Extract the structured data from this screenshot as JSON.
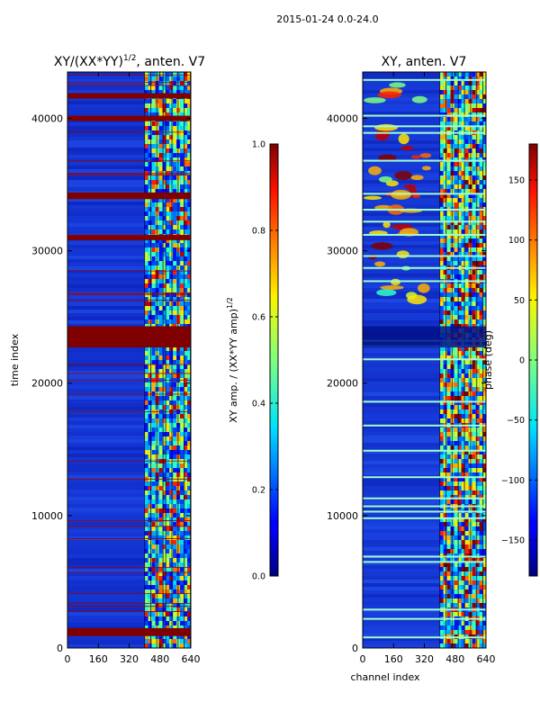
{
  "suptitle": "2015-01-24 0.0-24.0",
  "colors": {
    "saturated_band": "#800000",
    "deep_blue": "#00007f",
    "background_blue": "#1a3cdc"
  },
  "chart_data": [
    {
      "type": "heatmap",
      "title_prefix": "XY/(XX*YY)",
      "title_exp": "1/2",
      "title_suffix": ", anten. V7",
      "xlabel": "",
      "ylabel": "time index",
      "xlim": [
        0,
        640
      ],
      "ylim": [
        0,
        43500
      ],
      "xticks": [
        0,
        160,
        320,
        480,
        640
      ],
      "yticks": [
        0,
        10000,
        20000,
        30000,
        40000
      ],
      "colorbar": {
        "label_prefix": "XY amp. / (XX*YY amp)",
        "label_exp": "1/2",
        "range": [
          0.0,
          1.0
        ],
        "ticks": [
          "0.0",
          "0.2",
          "0.4",
          "0.6",
          "0.8",
          "1.0"
        ],
        "tick_values": [
          0.0,
          0.2,
          0.4,
          0.6,
          0.8,
          1.0
        ]
      },
      "active_channel_ranges": [
        [
          400,
          500
        ],
        [
          510,
          640
        ]
      ],
      "saturated_time_bands": [
        [
          900,
          1500
        ],
        [
          22700,
          24300
        ],
        [
          30800,
          31200
        ],
        [
          33900,
          34400
        ],
        [
          39800,
          40200
        ],
        [
          41500,
          41900
        ]
      ]
    },
    {
      "type": "heatmap",
      "title": "XY, anten. V7",
      "xlabel": "channel index",
      "ylabel": "",
      "xlim": [
        0,
        640
      ],
      "ylim": [
        0,
        43500
      ],
      "xticks": [
        0,
        160,
        320,
        480,
        640
      ],
      "yticks": [
        0,
        10000,
        20000,
        30000,
        40000
      ],
      "colorbar": {
        "label": "phase (deg)",
        "range": [
          -180,
          180
        ],
        "ticks": [
          "150",
          "100",
          "50",
          "0",
          "−50",
          "−100",
          "−150"
        ],
        "tick_values": [
          150,
          100,
          50,
          0,
          -50,
          -100,
          -150
        ]
      },
      "active_channel_ranges": [
        [
          400,
          640
        ]
      ],
      "bright_time_lines": [
        800,
        2200,
        2900,
        6500,
        6900,
        9800,
        10300,
        10700,
        11300,
        12900,
        14900,
        16800,
        18600,
        21800,
        22800,
        23200,
        27700,
        28700,
        29600,
        31200,
        32200,
        33100,
        34300,
        36800,
        38900,
        39400,
        40200,
        42900
      ]
    }
  ]
}
